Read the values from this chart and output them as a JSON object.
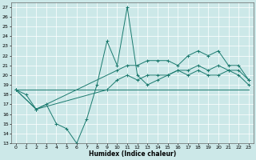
{
  "xlabel": "Humidex (Indice chaleur)",
  "bg_color": "#cce8e8",
  "grid_color": "#ffffff",
  "line_color": "#1a7a6e",
  "xlim": [
    -0.5,
    23.5
  ],
  "ylim": [
    13,
    27.5
  ],
  "xticks": [
    0,
    1,
    2,
    3,
    4,
    5,
    6,
    7,
    8,
    9,
    10,
    11,
    12,
    13,
    14,
    15,
    16,
    17,
    18,
    19,
    20,
    21,
    22,
    23
  ],
  "yticks": [
    13,
    14,
    15,
    16,
    17,
    18,
    19,
    20,
    21,
    22,
    23,
    24,
    25,
    26,
    27
  ],
  "line1": {
    "x": [
      0,
      1,
      2,
      3,
      4,
      5,
      6,
      7,
      8,
      9,
      10,
      11,
      12,
      13,
      14,
      15,
      16,
      17,
      18,
      19,
      20,
      21,
      22,
      23
    ],
    "y": [
      18.5,
      18.0,
      16.5,
      17.0,
      15.0,
      14.5,
      13.0,
      15.5,
      19.0,
      23.5,
      21.0,
      27.0,
      20.0,
      19.0,
      19.5,
      20.0,
      20.5,
      20.5,
      21.0,
      20.5,
      21.0,
      20.5,
      20.5,
      19.5
    ]
  },
  "line2": {
    "x": [
      0,
      2,
      10,
      11,
      12,
      13,
      14,
      15,
      16,
      17,
      18,
      19,
      20,
      21,
      22,
      23
    ],
    "y": [
      18.5,
      16.5,
      20.5,
      21.0,
      21.0,
      21.5,
      21.5,
      21.5,
      21.0,
      22.0,
      22.5,
      22.0,
      22.5,
      21.0,
      21.0,
      19.5
    ]
  },
  "line3": {
    "x": [
      0,
      2,
      9,
      10,
      11,
      12,
      13,
      14,
      15,
      16,
      17,
      18,
      19,
      20,
      21,
      22,
      23
    ],
    "y": [
      18.5,
      16.5,
      18.5,
      19.5,
      20.0,
      19.5,
      20.0,
      20.0,
      20.0,
      20.5,
      20.0,
      20.5,
      20.0,
      20.0,
      20.5,
      20.0,
      19.0
    ]
  },
  "line4": {
    "x": [
      0,
      23
    ],
    "y": [
      18.5,
      18.5
    ]
  }
}
